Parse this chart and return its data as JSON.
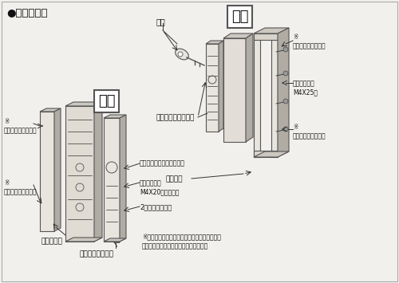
{
  "bg_color": "#f2f0ed",
  "border_color": "#555555",
  "text_color": "#111111",
  "line_color": "#333333",
  "face_light": "#e8e4de",
  "face_mid": "#ccc8c0",
  "face_dark": "#b0aca4",
  "face_side": "#d0ccc4",
  "title": "●取付概略図",
  "label_sotogawa": "外側",
  "label_uchigawa": "内側",
  "label_key": "キー",
  "label_outside_body": "アウトサイドボディ",
  "label_lock_plate": "鍵受け板",
  "label_align": "取付位置合せ、施解鍵表示",
  "label_drill_screw": "※\nドリルタッピンネジ",
  "label_outer_screw": "外鍵取付ネジ\nM4X25㏕",
  "label_inner_screw": "内鍵取付ネジ\nM4X20（頭逆鉄）",
  "label_double_lock": "2重ロックツマミ",
  "label_inner_case": "内鍵ケース",
  "label_inside_body": "インサイドボディ",
  "label_note": "※ドリルタッピンネジは取付ネジを締めつけて\n　作動を確認してから固定して下さい。"
}
